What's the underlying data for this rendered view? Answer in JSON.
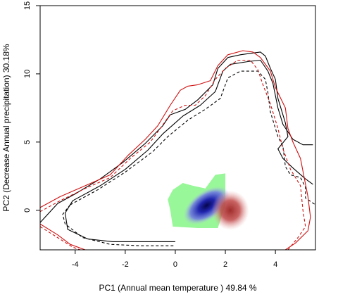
{
  "chart_data": {
    "type": "contour-density",
    "xlabel": "PC1 (Annual mean temperature ) 49.84 %",
    "ylabel": "PC2 (Decrease Annual precipitation) 30.18%",
    "xlim": [
      -5.4,
      5.6
    ],
    "ylim": [
      -2.9,
      15
    ],
    "x_ticks": [
      -4,
      -2,
      0,
      2,
      4
    ],
    "y_ticks": [
      0,
      5,
      10,
      15
    ],
    "x_tick_labels": [
      "-4",
      "-2",
      "0",
      "2",
      "4"
    ],
    "y_tick_labels": [
      "0",
      "5",
      "10",
      "15"
    ],
    "colors": {
      "contour_black": "#000000",
      "contour_red": "#d01010",
      "green_region": "#98f798",
      "blue_density": "#1a1ab0",
      "red_density": "#c04848"
    },
    "contours": [
      {
        "color": "black",
        "style": "solid",
        "points": [
          [
            -5.4,
            -0.9
          ],
          [
            -4.7,
            0.5
          ],
          [
            -4.0,
            1.2
          ],
          [
            -3.0,
            2.3
          ],
          [
            -2.1,
            3.5
          ],
          [
            -1.2,
            4.9
          ],
          [
            -0.5,
            6.2
          ],
          [
            -0.2,
            7.0
          ],
          [
            0.4,
            7.4
          ],
          [
            0.9,
            8.1
          ],
          [
            1.5,
            9.2
          ],
          [
            1.7,
            10.4
          ],
          [
            2.1,
            11.2
          ],
          [
            2.6,
            11.4
          ],
          [
            3.0,
            11.5
          ],
          [
            3.4,
            11.6
          ],
          [
            3.6,
            11.3
          ],
          [
            3.8,
            10.4
          ],
          [
            4.0,
            9.6
          ],
          [
            4.1,
            8.2
          ],
          [
            4.4,
            6.4
          ],
          [
            4.5,
            5.4
          ],
          [
            4.1,
            4.5
          ],
          [
            4.3,
            3.8
          ],
          [
            4.7,
            3.1
          ],
          [
            5.2,
            2.3
          ],
          [
            5.5,
            1.9
          ]
        ]
      },
      {
        "color": "black",
        "style": "solid",
        "points": [
          [
            -4.4,
            -0.2
          ],
          [
            -4.1,
            0.7
          ],
          [
            -3.0,
            1.8
          ],
          [
            -2.0,
            3.0
          ],
          [
            -1.1,
            4.4
          ],
          [
            -0.5,
            5.6
          ],
          [
            0.3,
            6.9
          ],
          [
            1.0,
            7.7
          ],
          [
            1.6,
            8.7
          ],
          [
            1.9,
            10.2
          ],
          [
            2.2,
            10.7
          ],
          [
            2.9,
            10.9
          ],
          [
            3.4,
            11.0
          ],
          [
            3.7,
            10.2
          ],
          [
            3.9,
            9.3
          ],
          [
            4.1,
            7.5
          ],
          [
            4.3,
            6.3
          ],
          [
            4.7,
            5.2
          ],
          [
            5.1,
            4.8
          ],
          [
            5.5,
            4.8
          ]
        ]
      },
      {
        "color": "black",
        "style": "solid",
        "points": [
          [
            -4.4,
            -0.2
          ],
          [
            -4.3,
            -1.4
          ],
          [
            -3.5,
            -2.1
          ],
          [
            -2.5,
            -2.3
          ],
          [
            -1.3,
            -2.3
          ],
          [
            0.0,
            -2.3
          ]
        ]
      },
      {
        "color": "black",
        "style": "dashed",
        "points": [
          [
            -4.2,
            0.4
          ],
          [
            -3.1,
            1.5
          ],
          [
            -2.0,
            2.8
          ],
          [
            -0.9,
            4.3
          ],
          [
            -0.3,
            5.4
          ],
          [
            0.5,
            6.6
          ],
          [
            1.2,
            7.4
          ],
          [
            1.8,
            8.2
          ],
          [
            2.1,
            9.7
          ],
          [
            2.6,
            10.2
          ],
          [
            3.3,
            10.2
          ],
          [
            3.6,
            9.6
          ],
          [
            3.7,
            8.6
          ],
          [
            3.8,
            7.2
          ],
          [
            4.1,
            5.4
          ],
          [
            4.3,
            4.7
          ],
          [
            4.4,
            3.2
          ],
          [
            4.6,
            2.6
          ],
          [
            5.0,
            2.4
          ],
          [
            5.2,
            1.7
          ],
          [
            5.2,
            0.9
          ],
          [
            5.6,
            0.4
          ]
        ]
      },
      {
        "color": "black",
        "style": "dashed",
        "points": [
          [
            -4.2,
            0.4
          ],
          [
            -4.5,
            -0.3
          ],
          [
            -4.4,
            -1.0
          ],
          [
            -3.7,
            -2.0
          ],
          [
            -2.6,
            -2.5
          ],
          [
            -1.4,
            -2.6
          ],
          [
            0.0,
            -2.6
          ]
        ]
      },
      {
        "color": "red",
        "style": "solid",
        "points": [
          [
            -5.4,
            0.2
          ],
          [
            -4.6,
            1.0
          ],
          [
            -3.6,
            1.8
          ],
          [
            -2.6,
            2.6
          ],
          [
            -1.9,
            4.0
          ],
          [
            -1.2,
            5.2
          ],
          [
            -0.7,
            6.2
          ],
          [
            -0.2,
            7.7
          ],
          [
            0.2,
            8.8
          ],
          [
            0.5,
            9.1
          ],
          [
            0.9,
            9.2
          ],
          [
            1.4,
            9.5
          ],
          [
            1.7,
            10.6
          ],
          [
            2.1,
            11.4
          ],
          [
            2.7,
            11.7
          ],
          [
            3.1,
            11.6
          ],
          [
            3.4,
            11.2
          ],
          [
            3.8,
            10.2
          ],
          [
            4.0,
            9.0
          ],
          [
            4.4,
            7.5
          ],
          [
            4.5,
            6.0
          ],
          [
            4.7,
            5.0
          ],
          [
            5.0,
            3.8
          ],
          [
            5.3,
            1.0
          ],
          [
            5.4,
            -0.5
          ],
          [
            5.3,
            -1.5
          ],
          [
            4.8,
            -2.4
          ],
          [
            4.4,
            -2.9
          ]
        ]
      },
      {
        "color": "red",
        "style": "solid",
        "points": [
          [
            -5.4,
            -1.0
          ],
          [
            -4.7,
            -1.8
          ],
          [
            -4.2,
            -2.5
          ],
          [
            -3.6,
            -2.9
          ]
        ]
      },
      {
        "color": "red",
        "style": "dashed",
        "points": [
          [
            -5.4,
            -0.1
          ],
          [
            -4.6,
            0.7
          ],
          [
            -3.6,
            1.6
          ],
          [
            -2.6,
            2.4
          ],
          [
            -1.8,
            3.8
          ],
          [
            -1.0,
            5.0
          ],
          [
            -0.6,
            6.0
          ],
          [
            -0.1,
            7.3
          ],
          [
            0.4,
            7.7
          ],
          [
            0.8,
            7.7
          ],
          [
            1.2,
            8.4
          ],
          [
            1.6,
            9.6
          ],
          [
            2.0,
            10.4
          ],
          [
            2.5,
            11.0
          ],
          [
            3.0,
            11.0
          ],
          [
            3.3,
            10.3
          ],
          [
            3.5,
            9.2
          ],
          [
            3.8,
            7.8
          ],
          [
            4.1,
            6.0
          ],
          [
            4.3,
            4.5
          ],
          [
            4.6,
            3.0
          ],
          [
            5.0,
            1.8
          ],
          [
            5.1,
            0.0
          ],
          [
            5.2,
            -1.2
          ],
          [
            4.9,
            -2.0
          ],
          [
            4.5,
            -2.9
          ]
        ]
      },
      {
        "color": "red",
        "style": "dashed",
        "points": [
          [
            -5.4,
            -1.2
          ],
          [
            -4.7,
            -2.0
          ],
          [
            -4.1,
            -2.7
          ],
          [
            -3.8,
            -2.9
          ]
        ]
      }
    ],
    "regions": [
      {
        "name": "green",
        "polygon": [
          [
            -0.1,
            1.5
          ],
          [
            0.3,
            2.0
          ],
          [
            0.7,
            1.8
          ],
          [
            1.2,
            1.6
          ],
          [
            1.6,
            2.6
          ],
          [
            2.0,
            2.7
          ],
          [
            2.0,
            0.4
          ],
          [
            1.7,
            -1.3
          ],
          [
            0.9,
            -1.3
          ],
          [
            -0.1,
            -1.2
          ],
          [
            -0.2,
            0.0
          ],
          [
            -0.3,
            0.8
          ]
        ]
      }
    ],
    "density_blobs": [
      {
        "name": "blue",
        "cx": 1.25,
        "cy": 0.35,
        "rx": 1.05,
        "ry": 1.05,
        "rotate": -35
      },
      {
        "name": "red",
        "cx": 2.2,
        "cy": 0.0,
        "rx": 0.75,
        "ry": 1.45,
        "rotate": 0
      }
    ]
  }
}
